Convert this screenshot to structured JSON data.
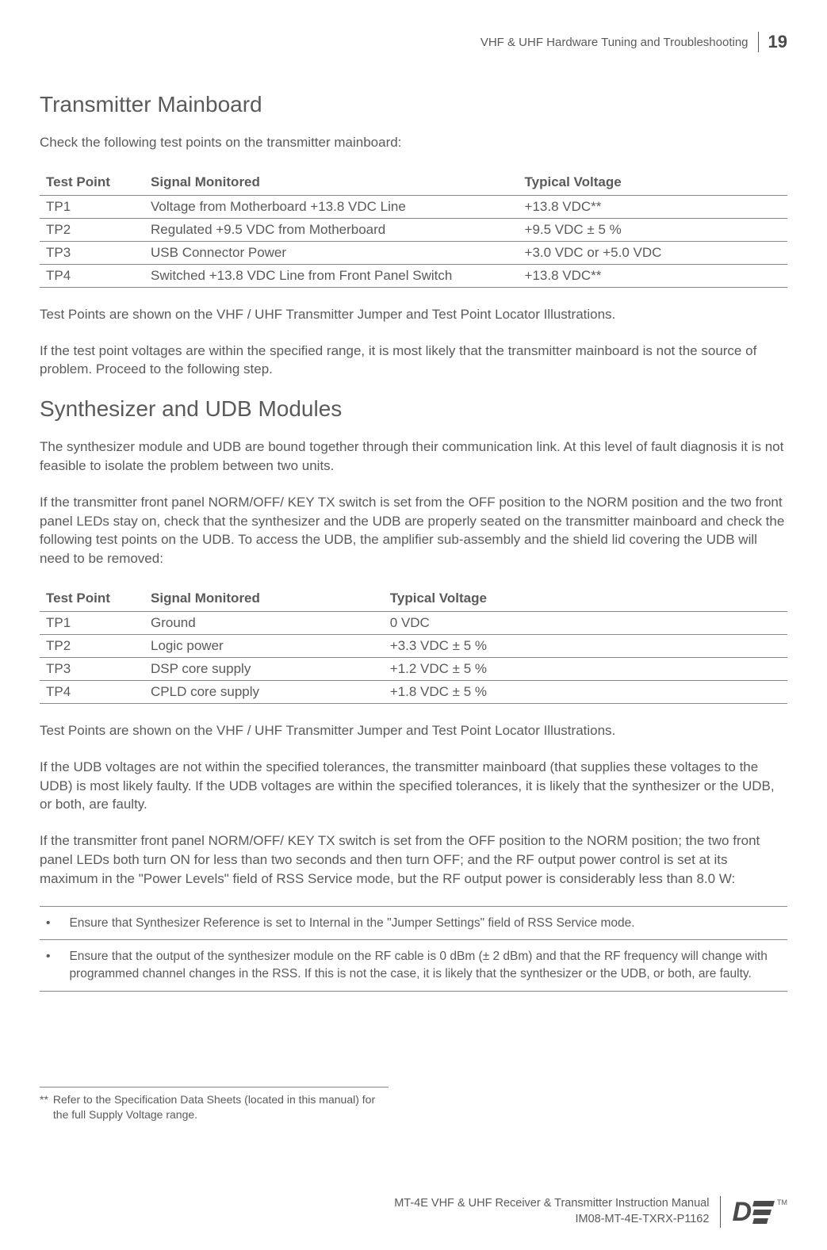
{
  "header": {
    "section_title": "VHF & UHF Hardware Tuning and Troubleshooting",
    "page_number": "19"
  },
  "sections": {
    "s1": {
      "heading": "Transmitter Mainboard",
      "intro": "Check the following test points on the transmitter mainboard:",
      "table": {
        "columns": [
          "Test Point",
          "Signal Monitored",
          "Typical Voltage"
        ],
        "col_widths": [
          "14%",
          "50%",
          "36%"
        ],
        "rows": [
          [
            "TP1",
            "Voltage from Motherboard +13.8 VDC Line",
            "+13.8 VDC**"
          ],
          [
            "TP2",
            "Regulated +9.5 VDC from Motherboard",
            "+9.5 VDC ± 5 %"
          ],
          [
            "TP3",
            "USB Connector Power",
            "+3.0 VDC or +5.0 VDC"
          ],
          [
            "TP4",
            "Switched +13.8 VDC Line from Front Panel Switch",
            "+13.8 VDC**"
          ]
        ]
      },
      "p1": "Test Points are shown on the VHF / UHF Transmitter Jumper and Test Point Locator Illustrations.",
      "p2": "If the test point voltages are within the specified range, it is most likely that the transmitter mainboard is not the source of problem. Proceed to the following step."
    },
    "s2": {
      "heading": "Synthesizer and UDB Modules",
      "p1": "The synthesizer module and UDB are bound together through their communication link. At this level of fault diagnosis it is not feasible to isolate the problem between two units.",
      "p2": "If the transmitter front panel NORM/OFF/ KEY TX switch is set from the OFF position to the NORM position and the two front panel LEDs stay on, check that the synthesizer and the UDB are properly seated on the transmitter mainboard and check the following test points on the UDB. To access the UDB, the amplifier sub-assembly and the shield lid covering the UDB will need to be removed:",
      "table": {
        "columns": [
          "Test Point",
          "Signal Monitored",
          "Typical Voltage"
        ],
        "col_widths": [
          "14%",
          "32%",
          "54%"
        ],
        "rows": [
          [
            "TP1",
            "Ground",
            "0 VDC"
          ],
          [
            "TP2",
            "Logic power",
            "+3.3 VDC ± 5 %"
          ],
          [
            "TP3",
            "DSP core supply",
            "+1.2 VDC ± 5 %"
          ],
          [
            "TP4",
            "CPLD core supply",
            "+1.8 VDC ± 5 %"
          ]
        ]
      },
      "p3": "Test Points are shown on the VHF / UHF Transmitter Jumper and Test Point Locator Illustrations.",
      "p4": "If the UDB voltages are not within the specified tolerances, the transmitter mainboard (that supplies these voltages to the UDB) is most likely faulty. If the UDB voltages are within the specified tolerances, it is likely that the synthesizer or the UDB, or both, are faulty.",
      "p5": "If the transmitter front panel NORM/OFF/ KEY TX switch is set from the OFF position to the NORM position; the two front panel LEDs both turn ON for less than two seconds and then turn OFF; and the RF output power control is set at its maximum in the \"Power Levels\" field of RSS Service mode, but the RF output power is considerably less than 8.0 W:",
      "bullets": [
        "Ensure that Synthesizer Reference is set to Internal in the \"Jumper Settings\" field of RSS Service mode.",
        "Ensure that the output of the synthesizer module on the RF cable is 0 dBm (± 2 dBm) and that the RF frequency will change with programmed channel changes in the RSS. If this is not the case, it is likely that the synthesizer or the UDB, or both, are faulty."
      ]
    }
  },
  "footnote": {
    "mark": "**",
    "text": "Refer to the Specification Data Sheets (located in this manual) for the full Supply Voltage range."
  },
  "footer": {
    "line1": "MT-4E VHF & UHF Receiver & Transmitter Instruction Manual",
    "line2": "IM08-MT-4E-TXRX-P1162",
    "logo_letter": "D",
    "logo_bar_widths": [
      26,
      22,
      18
    ],
    "tm": "TM"
  },
  "colors": {
    "text": "#5a5a5a",
    "rule": "#888888",
    "background": "#ffffff"
  }
}
